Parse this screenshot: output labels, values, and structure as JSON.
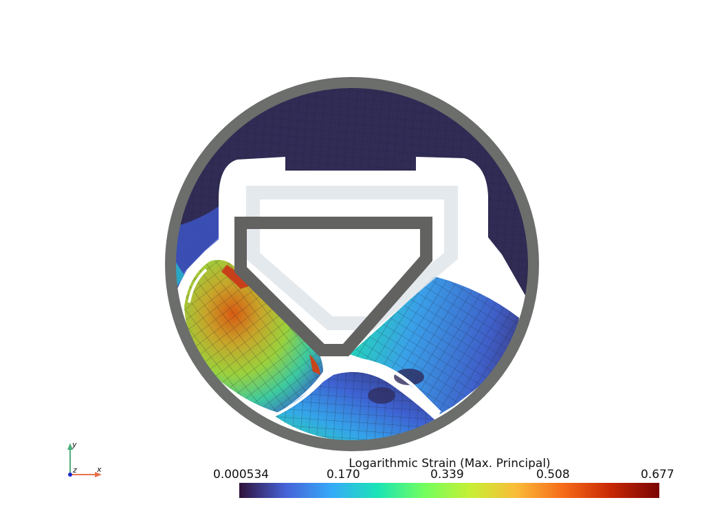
{
  "colorbar": {
    "title": "Logarithmic Strain (Max. Principal)",
    "ticks": [
      "0.000534",
      "0.170",
      "0.339",
      "0.508",
      "0.677"
    ],
    "colors": [
      "#30123b",
      "#4662d7",
      "#36aaf9",
      "#1ae4b6",
      "#72fe5e",
      "#c7ef34",
      "#fabb39",
      "#f66b19",
      "#ca2a04",
      "#7a0403"
    ]
  },
  "axes": {
    "x": "x",
    "y": "y",
    "z": "z"
  },
  "colors": {
    "ring": "#6b6e6b",
    "frame": "#626260",
    "ghost": "#e2e8eb",
    "low_strain": "#2f2a52",
    "mesh": "#1c1c2a"
  }
}
